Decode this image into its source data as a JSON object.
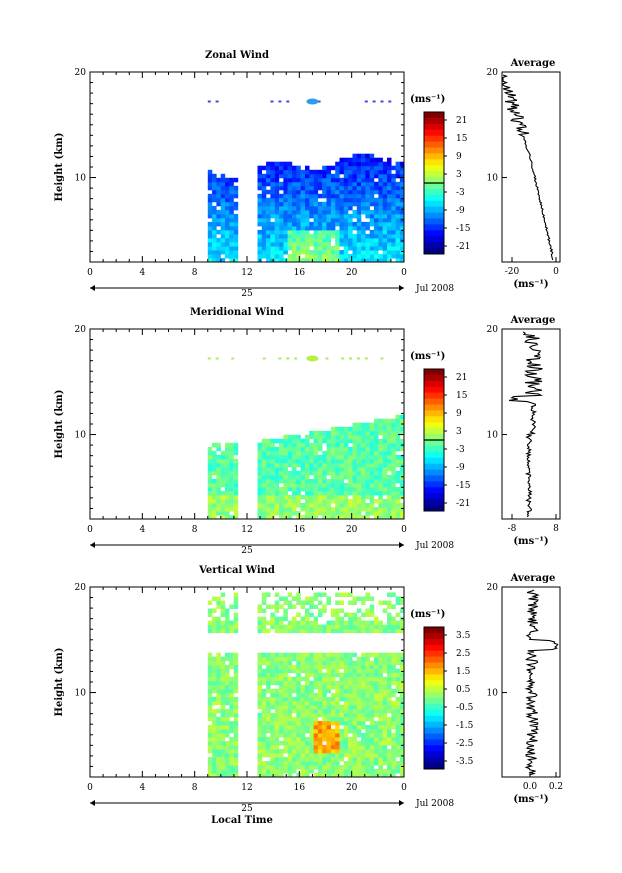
{
  "chart_data": [
    {
      "type": "heatmap",
      "title": "Zonal Wind",
      "ylabel": "Height (km)",
      "ylim": [
        2,
        20
      ],
      "yticks": [
        "20",
        "10"
      ],
      "xlim": [
        0,
        24
      ],
      "xticks": [
        "0",
        "4",
        "8",
        "12",
        "16",
        "20",
        "0"
      ],
      "date_label": "25",
      "month_label": "Jul 2008",
      "colorbar_unit": "(ms⁻¹)",
      "colorbar_ticks": [
        "21",
        "15",
        "9",
        "3",
        "-3",
        "-9",
        "-15",
        "-21"
      ],
      "colorbar_range": [
        -24,
        24
      ],
      "data_segments": [
        [
          9,
          11
        ],
        [
          12.8,
          24
        ]
      ],
      "profile_title": "Average",
      "profile_xticks": [
        "-20",
        "0"
      ],
      "profile_xlabel": "(ms⁻¹)",
      "profile_yticks": [
        "20",
        "10"
      ]
    },
    {
      "type": "heatmap",
      "title": "Meridional Wind",
      "ylabel": "Height (km)",
      "ylim": [
        2,
        20
      ],
      "yticks": [
        "20",
        "10"
      ],
      "xlim": [
        0,
        24
      ],
      "xticks": [
        "0",
        "4",
        "8",
        "12",
        "16",
        "20",
        "0"
      ],
      "date_label": "25",
      "month_label": "Jul 2008",
      "colorbar_unit": "(ms⁻¹)",
      "colorbar_ticks": [
        "21",
        "15",
        "9",
        "3",
        "-3",
        "-9",
        "-15",
        "-21"
      ],
      "colorbar_range": [
        -24,
        24
      ],
      "data_segments": [
        [
          9,
          11
        ],
        [
          12.8,
          24
        ]
      ],
      "profile_title": "Average",
      "profile_xticks": [
        "-8",
        "8"
      ],
      "profile_xlabel": "(ms⁻¹)",
      "profile_yticks": [
        "20",
        "10"
      ]
    },
    {
      "type": "heatmap",
      "title": "Vertical Wind",
      "ylabel": "Height (km)",
      "ylim": [
        2,
        20
      ],
      "yticks": [
        "20",
        "10"
      ],
      "xlim": [
        0,
        24
      ],
      "xticks": [
        "0",
        "4",
        "8",
        "12",
        "16",
        "20",
        "0"
      ],
      "date_label": "25",
      "month_label": "Jul 2008",
      "xlabel": "Local Time",
      "colorbar_unit": "(ms⁻¹)",
      "colorbar_ticks": [
        "3.5",
        "2.5",
        "1.5",
        "0.5",
        "-0.5",
        "-1.5",
        "-2.5",
        "-3.5"
      ],
      "colorbar_range": [
        -4,
        4
      ],
      "data_segments": [
        [
          9,
          11
        ],
        [
          12.8,
          24
        ]
      ],
      "profile_title": "Average",
      "profile_xticks": [
        "0.0",
        "0.2"
      ],
      "profile_xlabel": "(ms⁻¹)",
      "profile_yticks": [
        "20",
        "10"
      ]
    }
  ]
}
